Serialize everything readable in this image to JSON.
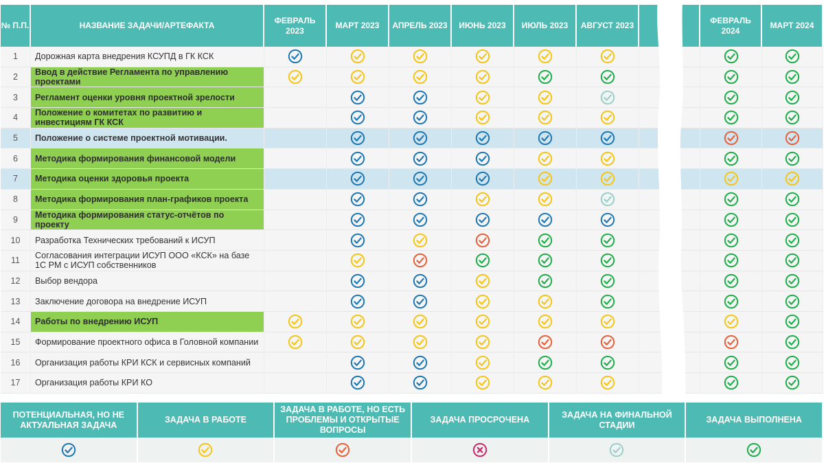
{
  "colors": {
    "header_bg": "#4dbbb3",
    "green_row": "#8fcf52",
    "highlight_row": "#cfe6f0",
    "blue": "#1f78b4",
    "yellow": "#f5c518",
    "orange": "#e8603c",
    "red": "#cc2a6a",
    "gray": "#9fcdc8",
    "green": "#1fae4b"
  },
  "header": {
    "num": "№ П.П.",
    "name": "НАЗВАНИЕ ЗАДАЧИ/АРТЕФАКТА",
    "months": [
      "ФЕВРАЛЬ 2023",
      "МАРТ 2023",
      "АПРЕЛЬ 2023",
      "ИЮНЬ 2023",
      "ИЮЛЬ 2023",
      "АВГУСТ 2023",
      "",
      "ФЕВРАЛЬ 2024",
      "МАРТ 2024"
    ]
  },
  "rows": [
    {
      "num": "1",
      "name": "Дорожная карта внедрения КСУПД в ГК КСК",
      "style": "plain",
      "hl": false,
      "status": [
        "blue",
        "yellow",
        "yellow",
        "yellow",
        "yellow",
        "yellow",
        "",
        "green",
        "green"
      ]
    },
    {
      "num": "2",
      "name": "Ввод в действие Регламента по управлению проектами",
      "style": "green",
      "hl": false,
      "status": [
        "yellow",
        "yellow",
        "yellow",
        "yellow",
        "green",
        "green",
        "",
        "green",
        "green"
      ]
    },
    {
      "num": "3",
      "name": "Регламент оценки уровня проектной зрелости",
      "style": "green",
      "hl": false,
      "status": [
        "",
        "blue",
        "blue",
        "yellow",
        "yellow",
        "gray",
        "",
        "green",
        "green"
      ]
    },
    {
      "num": "4",
      "name": "Положение о комитетах по развитию и инвестициям ГК КСК",
      "style": "green",
      "hl": false,
      "status": [
        "",
        "blue",
        "blue",
        "yellow",
        "yellow",
        "yellow",
        "",
        "green",
        "green"
      ]
    },
    {
      "num": "5",
      "name": "Положение о системе проектной мотивации.",
      "style": "bold",
      "hl": true,
      "status": [
        "",
        "blue",
        "blue",
        "blue",
        "blue",
        "blue",
        "",
        "orange",
        "orange"
      ]
    },
    {
      "num": "6",
      "name": "Методика формирования финансовой модели",
      "style": "green",
      "hl": false,
      "status": [
        "",
        "blue",
        "blue",
        "blue",
        "yellow",
        "yellow",
        "",
        "green",
        "green"
      ]
    },
    {
      "num": "7",
      "name": "Методика оценки здоровья проекта",
      "style": "green",
      "hl": true,
      "status": [
        "",
        "blue",
        "blue",
        "blue",
        "yellow",
        "yellow",
        "",
        "yellow",
        "yellow"
      ]
    },
    {
      "num": "8",
      "name": "Методика формирования план-графиков проекта",
      "style": "green",
      "hl": false,
      "status": [
        "",
        "blue",
        "blue",
        "yellow",
        "yellow",
        "gray",
        "",
        "green",
        "green"
      ]
    },
    {
      "num": "9",
      "name": "Методика формирования статус-отчётов по проекту",
      "style": "green",
      "hl": false,
      "status": [
        "",
        "blue",
        "blue",
        "blue",
        "blue",
        "blue",
        "",
        "green",
        "green"
      ]
    },
    {
      "num": "10",
      "name": "Разработка Технических требований к ИСУП",
      "style": "plain",
      "hl": false,
      "status": [
        "",
        "blue",
        "yellow",
        "orange",
        "green",
        "green",
        "",
        "green",
        "green"
      ]
    },
    {
      "num": "11",
      "name": "Согласования интеграции ИСУП ООО «КСК» на базе 1С PM с ИСУП собственников",
      "style": "plain",
      "hl": false,
      "status": [
        "",
        "yellow",
        "orange",
        "green",
        "green",
        "green",
        "",
        "green",
        "green"
      ]
    },
    {
      "num": "12",
      "name": "Выбор вендора",
      "style": "plain",
      "hl": false,
      "status": [
        "",
        "blue",
        "blue",
        "yellow",
        "green",
        "green",
        "",
        "green",
        "green"
      ]
    },
    {
      "num": "13",
      "name": "Заключение договора на внедрение ИСУП",
      "style": "plain",
      "hl": false,
      "status": [
        "",
        "blue",
        "blue",
        "yellow",
        "yellow",
        "green",
        "",
        "green",
        "green"
      ]
    },
    {
      "num": "14",
      "name": "Работы по внедрению ИСУП",
      "style": "green",
      "hl": false,
      "status": [
        "yellow",
        "yellow",
        "yellow",
        "yellow",
        "yellow",
        "yellow",
        "",
        "yellow",
        "green"
      ]
    },
    {
      "num": "15",
      "name": "Формирование проектного офиса в Головной компании",
      "style": "plain",
      "hl": false,
      "status": [
        "yellow",
        "yellow",
        "yellow",
        "yellow",
        "orange",
        "orange",
        "",
        "orange",
        "green"
      ]
    },
    {
      "num": "16",
      "name": "Организация работы КРИ КСК и сервисных компаний",
      "style": "plain",
      "hl": false,
      "status": [
        "",
        "blue",
        "blue",
        "yellow",
        "green",
        "green",
        "",
        "green",
        "green"
      ]
    },
    {
      "num": "17",
      "name": "Организация работы КРИ КО",
      "style": "plain",
      "hl": false,
      "status": [
        "",
        "blue",
        "blue",
        "yellow",
        "yellow",
        "yellow",
        "",
        "green",
        "green"
      ]
    }
  ],
  "legend": [
    {
      "label": "ПОТЕНЦИАЛЬНАЯ, НО НЕ АКТУАЛЬНАЯ ЗАДАЧА",
      "icon": "blue"
    },
    {
      "label": "ЗАДАЧА В РАБОТЕ",
      "icon": "yellow"
    },
    {
      "label": "ЗАДАЧА В РАБОТЕ, НО ЕСТЬ ПРОБЛЕМЫ И ОТКРЫТЫЕ ВОПРОСЫ",
      "icon": "orange"
    },
    {
      "label": "ЗАДАЧА ПРОСРОЧЕНА",
      "icon": "red"
    },
    {
      "label": "ЗАДАЧА НА ФИНАЛЬНОЙ СТАДИИ",
      "icon": "gray"
    },
    {
      "label": "ЗАДАЧА ВЫПОЛНЕНА",
      "icon": "green"
    }
  ]
}
